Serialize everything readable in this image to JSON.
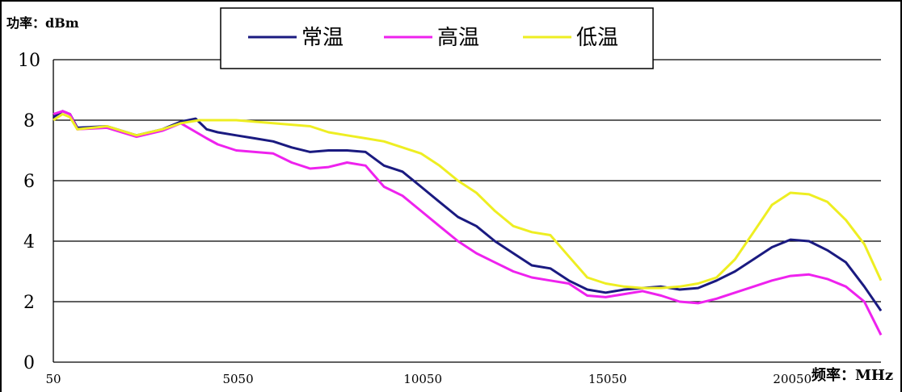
{
  "chart_data": {
    "type": "line",
    "ylabel": "功率：dBm",
    "xlabel": "频率：MHz",
    "xlim": [
      50,
      22450
    ],
    "ylim": [
      0,
      10
    ],
    "yticks": [
      0,
      2,
      4,
      6,
      8,
      10
    ],
    "xticks": [
      50,
      5050,
      10050,
      15050,
      20050
    ],
    "grid": "horizontal",
    "legend_position": "top-center",
    "series": [
      {
        "name": "常温",
        "color": "#1a1a80",
        "x": [
          50,
          300,
          500,
          700,
          1500,
          2300,
          3000,
          3500,
          3900,
          4200,
          4500,
          5000,
          5500,
          6000,
          6500,
          7000,
          7500,
          8000,
          8500,
          9000,
          9500,
          10000,
          10500,
          11000,
          11500,
          12000,
          12500,
          13000,
          13500,
          14000,
          14500,
          15000,
          15500,
          16000,
          16500,
          17000,
          17500,
          18000,
          18500,
          19000,
          19500,
          20000,
          20500,
          21000,
          21500,
          22000,
          22450
        ],
        "y": [
          8.1,
          8.3,
          8.2,
          7.75,
          7.8,
          7.5,
          7.7,
          7.95,
          8.05,
          7.7,
          7.6,
          7.5,
          7.4,
          7.3,
          7.1,
          6.95,
          7.0,
          7.0,
          6.95,
          6.5,
          6.3,
          5.8,
          5.3,
          4.8,
          4.5,
          4.0,
          3.6,
          3.2,
          3.1,
          2.7,
          2.4,
          2.3,
          2.4,
          2.45,
          2.5,
          2.4,
          2.45,
          2.7,
          3.0,
          3.4,
          3.8,
          4.05,
          4.0,
          3.7,
          3.3,
          2.5,
          1.7
        ]
      },
      {
        "name": "高温",
        "color": "#ee22ee",
        "x": [
          50,
          300,
          500,
          700,
          1500,
          2300,
          3000,
          3500,
          4200,
          4500,
          5000,
          5500,
          6000,
          6500,
          7000,
          7500,
          8000,
          8500,
          9000,
          9500,
          10000,
          10500,
          11000,
          11500,
          12000,
          12500,
          13000,
          13500,
          14000,
          14500,
          15000,
          15500,
          16000,
          16500,
          17000,
          17500,
          18000,
          18500,
          19000,
          19500,
          20000,
          20500,
          21000,
          21500,
          22000,
          22450
        ],
        "y": [
          8.2,
          8.3,
          8.2,
          7.7,
          7.75,
          7.45,
          7.65,
          7.9,
          7.4,
          7.2,
          7.0,
          6.95,
          6.9,
          6.6,
          6.4,
          6.45,
          6.6,
          6.5,
          5.8,
          5.5,
          5.0,
          4.5,
          4.0,
          3.6,
          3.3,
          3.0,
          2.8,
          2.7,
          2.6,
          2.2,
          2.15,
          2.25,
          2.35,
          2.2,
          2.0,
          1.95,
          2.1,
          2.3,
          2.5,
          2.7,
          2.85,
          2.9,
          2.75,
          2.5,
          2.0,
          0.9
        ]
      },
      {
        "name": "低温",
        "color": "#eeee22",
        "x": [
          50,
          300,
          500,
          700,
          1500,
          2300,
          3000,
          3500,
          4000,
          4500,
          5000,
          5500,
          6000,
          6500,
          7000,
          7500,
          8000,
          8500,
          9000,
          9500,
          10000,
          10500,
          11000,
          11500,
          12000,
          12500,
          13000,
          13500,
          14000,
          14500,
          15000,
          15500,
          16000,
          16500,
          17000,
          17500,
          18000,
          18500,
          19000,
          19500,
          20000,
          20500,
          21000,
          21500,
          22000,
          22450
        ],
        "y": [
          8.0,
          8.2,
          8.1,
          7.7,
          7.8,
          7.5,
          7.7,
          7.9,
          8.0,
          8.0,
          8.0,
          7.95,
          7.9,
          7.85,
          7.8,
          7.6,
          7.5,
          7.4,
          7.3,
          7.1,
          6.9,
          6.5,
          6.0,
          5.6,
          5.0,
          4.5,
          4.3,
          4.2,
          3.5,
          2.8,
          2.6,
          2.5,
          2.45,
          2.45,
          2.5,
          2.6,
          2.8,
          3.4,
          4.3,
          5.2,
          5.6,
          5.55,
          5.3,
          4.7,
          3.9,
          2.7
        ]
      }
    ]
  }
}
